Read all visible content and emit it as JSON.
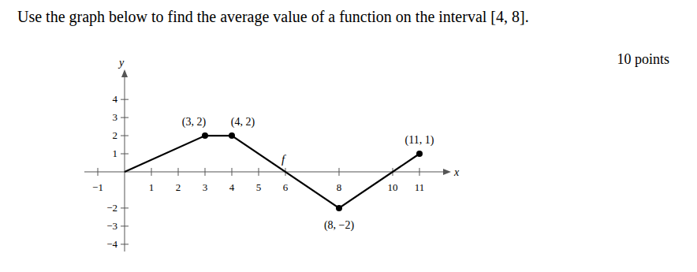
{
  "question": "Use the graph below to find the average value of a function on the interval [4, 8].",
  "points": "10 points",
  "chart_data": {
    "type": "line",
    "x_label": "x",
    "y_label": "y",
    "x": [
      0,
      3,
      4,
      8,
      11
    ],
    "series": [
      {
        "name": "f",
        "color": "#000000",
        "marker": "circle",
        "line_style": "solid",
        "values": [
          0,
          2,
          2,
          -2,
          1
        ],
        "value_labels": [
          null,
          "(3, 2)",
          "(4, 2)",
          "(8, −2)",
          "(11, 1)"
        ]
      }
    ],
    "data_labels": true,
    "xlim": [
      -1.5,
      12
    ],
    "ylim": [
      -4.4,
      5.4
    ],
    "xticks": [
      -1,
      1,
      2,
      3,
      4,
      5,
      6,
      8,
      10,
      11
    ],
    "yticks": [
      -4,
      -3,
      -2,
      1,
      2,
      3,
      4
    ],
    "grid": false
  }
}
